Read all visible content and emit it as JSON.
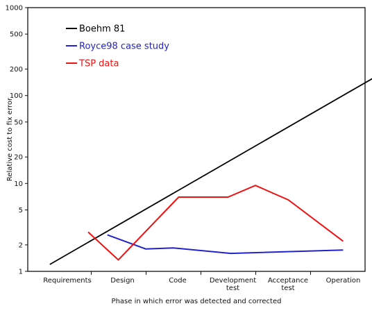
{
  "chart_data": {
    "type": "line",
    "title": "",
    "xlabel": "Phase in which error was detected and corrected",
    "ylabel": "Relative cost to fix error",
    "y_scale": "log",
    "ylim": [
      1,
      1000
    ],
    "y_ticks": [
      1,
      2,
      5,
      10,
      20,
      50,
      100,
      200,
      500,
      1000
    ],
    "grid": false,
    "legend_position": "top-left",
    "categories": [
      "Requirements",
      "Design",
      "Code",
      "Development test",
      "Acceptance test",
      "Operation"
    ],
    "series": [
      {
        "name": "Boehm 81",
        "color": "#000000",
        "points": [
          {
            "x": 0.25,
            "y": 1.2
          },
          {
            "x": 6.55,
            "y": 220
          }
        ]
      },
      {
        "name": "Royce98 case study",
        "color": "#2222cc",
        "points": [
          {
            "x": 1.3,
            "y": 2.6
          },
          {
            "x": 2.0,
            "y": 1.8
          },
          {
            "x": 2.5,
            "y": 1.85
          },
          {
            "x": 3.55,
            "y": 1.6
          },
          {
            "x": 5.6,
            "y": 1.75
          }
        ]
      },
      {
        "name": "TSP data",
        "color": "#ee1111",
        "points": [
          {
            "x": 0.95,
            "y": 2.8
          },
          {
            "x": 1.5,
            "y": 1.35
          },
          {
            "x": 2.6,
            "y": 7.0
          },
          {
            "x": 3.5,
            "y": 7.0
          },
          {
            "x": 4.0,
            "y": 9.5
          },
          {
            "x": 4.6,
            "y": 6.5
          },
          {
            "x": 5.6,
            "y": 2.2
          }
        ]
      }
    ]
  }
}
